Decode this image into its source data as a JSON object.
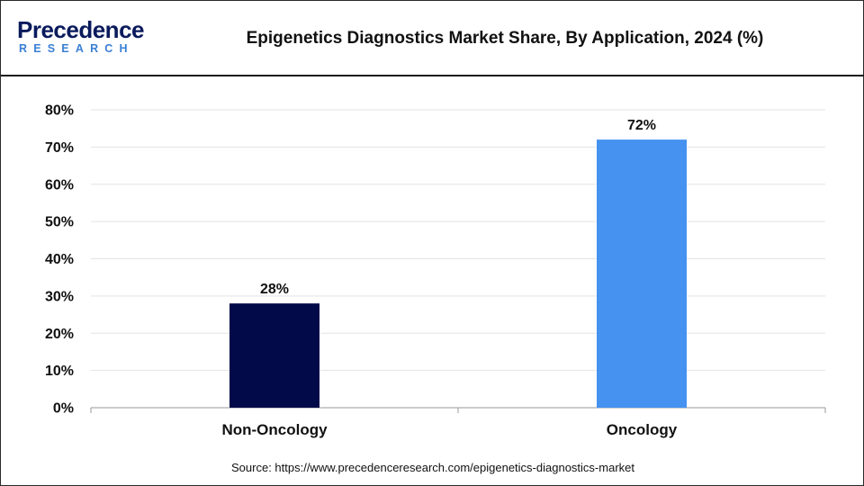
{
  "brand": {
    "name": "Precedence",
    "tagline": "RESEARCH"
  },
  "title": "Epigenetics Diagnostics Market Share, By Application, 2024 (%)",
  "source": "Source: https://www.precedenceresearch.com/epigenetics-diagnostics-market",
  "colors": {
    "brand_dark": "#0a1a5c",
    "brand_light": "#3a7fd5"
  },
  "chart_data": {
    "type": "bar",
    "title": "Epigenetics Diagnostics Market Share, By Application, 2024 (%)",
    "xlabel": "",
    "ylabel": "",
    "categories": [
      "Non-Oncology",
      "Oncology"
    ],
    "values": [
      28,
      72
    ],
    "data_labels": [
      "28%",
      "72%"
    ],
    "bar_colors": [
      "#030a4a",
      "#4592f0"
    ],
    "ylim": [
      0,
      80
    ],
    "yticks": [
      0,
      10,
      20,
      30,
      40,
      50,
      60,
      70,
      80
    ],
    "ytick_labels": [
      "0%",
      "10%",
      "20%",
      "30%",
      "40%",
      "50%",
      "60%",
      "70%",
      "80%"
    ],
    "grid": true,
    "legend": "none"
  }
}
